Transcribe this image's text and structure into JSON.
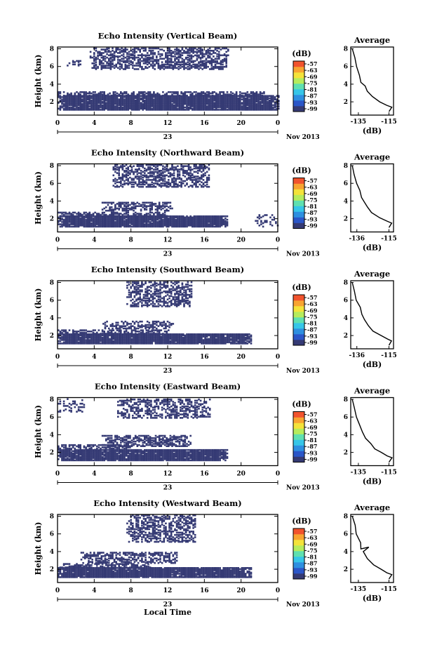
{
  "figure": {
    "shared_xlabel": "Local Time",
    "date_label": "Nov 2013",
    "day_label": "23",
    "avg_title": "Average",
    "avg_xlabel": "(dB)",
    "colorbar_label": "(dB)",
    "ylabel": "Height (km)"
  },
  "chart_data": [
    {
      "type": "heatmap",
      "title": "Echo Intensity (Vertical Beam)",
      "ylabel": "Height (km)",
      "x_ticks": [
        "0",
        "4",
        "8",
        "12",
        "16",
        "20",
        "0"
      ],
      "x_range": [
        0,
        24
      ],
      "y_ticks": [
        "2",
        "4",
        "6",
        "8"
      ],
      "y_range": [
        0.5,
        8.2
      ],
      "colorbar": {
        "label": "(dB)",
        "ticks": [
          "-57",
          "-63",
          "-69",
          "-75",
          "-81",
          "-87",
          "-93",
          "-99"
        ],
        "colors": [
          "#353a74",
          "#2b56c8",
          "#2e8fe0",
          "#36c6e8",
          "#5fe0b0",
          "#b6ec5c",
          "#f4e33a",
          "#f8a431",
          "#f1532d"
        ]
      },
      "mostly_value_db": -99,
      "bands": [
        {
          "t_start": 0,
          "t_end": 24,
          "h_bottom": 1.0,
          "h_top": 2.6,
          "density": 0.95
        },
        {
          "t_start": 0,
          "t_end": 22.5,
          "h_bottom": 2.6,
          "h_top": 3.1,
          "density": 0.55
        },
        {
          "t_start": 3.5,
          "t_end": 18.5,
          "h_bottom": 5.6,
          "h_top": 8.0,
          "density": 0.55
        },
        {
          "t_start": 1.0,
          "t_end": 3.0,
          "h_bottom": 6.0,
          "h_top": 6.6,
          "density": 0.3
        }
      ],
      "average": {
        "title": "Average",
        "xlabel": "(dB)",
        "x_ticks": [
          "-135",
          "-115"
        ],
        "x_range": [
          -140,
          -112
        ],
        "y_ticks": [
          "2",
          "4",
          "6",
          "8"
        ],
        "y_range": [
          0.5,
          8.2
        ],
        "profile": [
          [
            -139,
            8.0
          ],
          [
            -137.5,
            7.0
          ],
          [
            -136,
            6.0
          ],
          [
            -134,
            5.0
          ],
          [
            -133,
            4.2
          ],
          [
            -131,
            3.8
          ],
          [
            -129,
            3.2
          ],
          [
            -126,
            2.6
          ],
          [
            -121,
            2.0
          ],
          [
            -116,
            1.6
          ],
          [
            -113,
            1.4
          ],
          [
            -115,
            0.9
          ]
        ]
      }
    },
    {
      "type": "heatmap",
      "title": "Echo Intensity (Northward Beam)",
      "ylabel": "Height (km)",
      "x_ticks": [
        "0",
        "4",
        "8",
        "12",
        "16",
        "20",
        "0"
      ],
      "x_range": [
        0,
        24
      ],
      "y_ticks": [
        "2",
        "4",
        "6",
        "8"
      ],
      "y_range": [
        0.5,
        8.2
      ],
      "colorbar": {
        "label": "(dB)",
        "ticks": [
          "-57",
          "-63",
          "-69",
          "-75",
          "-81",
          "-87",
          "-93",
          "-99"
        ],
        "colors": [
          "#353a74",
          "#2b56c8",
          "#2e8fe0",
          "#36c6e8",
          "#5fe0b0",
          "#b6ec5c",
          "#f4e33a",
          "#f8a431",
          "#f1532d"
        ]
      },
      "mostly_value_db": -99,
      "bands": [
        {
          "t_start": 0,
          "t_end": 18.5,
          "h_bottom": 1.0,
          "h_top": 2.2,
          "density": 0.95
        },
        {
          "t_start": 0,
          "t_end": 12,
          "h_bottom": 2.2,
          "h_top": 2.6,
          "density": 0.6
        },
        {
          "t_start": 4.8,
          "t_end": 12.5,
          "h_bottom": 2.8,
          "h_top": 3.8,
          "density": 0.55
        },
        {
          "t_start": 6.0,
          "t_end": 16.5,
          "h_bottom": 5.5,
          "h_top": 8.0,
          "density": 0.5
        },
        {
          "t_start": 21.5,
          "t_end": 24,
          "h_bottom": 1.0,
          "h_top": 2.4,
          "density": 0.3
        }
      ],
      "average": {
        "title": "Average",
        "xlabel": "(dB)",
        "x_ticks": [
          "-136",
          "-115"
        ],
        "x_range": [
          -140,
          -112
        ],
        "y_ticks": [
          "2",
          "4",
          "6",
          "8"
        ],
        "y_range": [
          0.5,
          8.2
        ],
        "profile": [
          [
            -139,
            8.0
          ],
          [
            -137.5,
            7.0
          ],
          [
            -136,
            6.0
          ],
          [
            -134,
            5.2
          ],
          [
            -133,
            4.4
          ],
          [
            -131.5,
            3.9
          ],
          [
            -129,
            3.3
          ],
          [
            -126,
            2.7
          ],
          [
            -121,
            2.1
          ],
          [
            -116,
            1.7
          ],
          [
            -113,
            1.5
          ],
          [
            -115,
            1.0
          ]
        ]
      }
    },
    {
      "type": "heatmap",
      "title": "Echo Intensity (Southward Beam)",
      "ylabel": "Height (km)",
      "x_ticks": [
        "0",
        "4",
        "8",
        "12",
        "16",
        "20",
        "0"
      ],
      "x_range": [
        0,
        24
      ],
      "y_ticks": [
        "2",
        "4",
        "6",
        "8"
      ],
      "y_range": [
        0.5,
        8.2
      ],
      "colorbar": {
        "label": "(dB)",
        "ticks": [
          "-57",
          "-63",
          "-69",
          "-75",
          "-81",
          "-87",
          "-93",
          "-99"
        ],
        "colors": [
          "#353a74",
          "#2b56c8",
          "#2e8fe0",
          "#36c6e8",
          "#5fe0b0",
          "#b6ec5c",
          "#f4e33a",
          "#f8a431",
          "#f1532d"
        ]
      },
      "mostly_value_db": -99,
      "bands": [
        {
          "t_start": 0,
          "t_end": 21,
          "h_bottom": 1.0,
          "h_top": 2.1,
          "density": 0.95
        },
        {
          "t_start": 0,
          "t_end": 12,
          "h_bottom": 2.1,
          "h_top": 2.6,
          "density": 0.55
        },
        {
          "t_start": 4.5,
          "t_end": 12.5,
          "h_bottom": 2.7,
          "h_top": 3.6,
          "density": 0.5
        },
        {
          "t_start": 7.5,
          "t_end": 14.5,
          "h_bottom": 5.2,
          "h_top": 8.0,
          "density": 0.5
        }
      ],
      "average": {
        "title": "Average",
        "xlabel": "(dB)",
        "x_ticks": [
          "-136",
          "-115"
        ],
        "x_range": [
          -140,
          -112
        ],
        "y_ticks": [
          "2",
          "4",
          "6",
          "8"
        ],
        "y_range": [
          0.5,
          8.2
        ],
        "profile": [
          [
            -139,
            8.0
          ],
          [
            -137.5,
            7.0
          ],
          [
            -136,
            6.0
          ],
          [
            -134,
            5.2
          ],
          [
            -133,
            4.4
          ],
          [
            -131,
            3.8
          ],
          [
            -128,
            3.1
          ],
          [
            -125,
            2.5
          ],
          [
            -120,
            2.0
          ],
          [
            -116,
            1.6
          ],
          [
            -113,
            1.4
          ],
          [
            -115,
            0.9
          ]
        ]
      }
    },
    {
      "type": "heatmap",
      "title": "Echo Intensity (Eastward Beam)",
      "ylabel": "Height (km)",
      "x_ticks": [
        "0",
        "4",
        "8",
        "12",
        "16",
        "20",
        "0"
      ],
      "x_range": [
        0,
        24
      ],
      "y_ticks": [
        "2",
        "4",
        "6",
        "8"
      ],
      "y_range": [
        0.5,
        8.2
      ],
      "colorbar": {
        "label": "(dB)",
        "ticks": [
          "-57",
          "-63",
          "-69",
          "-75",
          "-81",
          "-87",
          "-93",
          "-99"
        ],
        "colors": [
          "#353a74",
          "#2b56c8",
          "#2e8fe0",
          "#36c6e8",
          "#5fe0b0",
          "#b6ec5c",
          "#f4e33a",
          "#f8a431",
          "#f1532d"
        ]
      },
      "mostly_value_db": -99,
      "bands": [
        {
          "t_start": 0,
          "t_end": 18.5,
          "h_bottom": 1.0,
          "h_top": 2.2,
          "density": 0.95
        },
        {
          "t_start": 0,
          "t_end": 8,
          "h_bottom": 2.2,
          "h_top": 2.8,
          "density": 0.55
        },
        {
          "t_start": 4.8,
          "t_end": 14.5,
          "h_bottom": 2.6,
          "h_top": 3.8,
          "density": 0.55
        },
        {
          "t_start": 6.5,
          "t_end": 16.5,
          "h_bottom": 5.8,
          "h_top": 8.0,
          "density": 0.45
        },
        {
          "t_start": 0,
          "t_end": 3,
          "h_bottom": 6.5,
          "h_top": 8.0,
          "density": 0.25
        }
      ],
      "average": {
        "title": "Average",
        "xlabel": "(dB)",
        "x_ticks": [
          "-135",
          "-115"
        ],
        "x_range": [
          -140,
          -112
        ],
        "y_ticks": [
          "2",
          "4",
          "6",
          "8"
        ],
        "y_range": [
          0.5,
          8.2
        ],
        "profile": [
          [
            -139,
            8.0
          ],
          [
            -137.5,
            7.0
          ],
          [
            -136,
            6.0
          ],
          [
            -134,
            5.2
          ],
          [
            -132.5,
            4.3
          ],
          [
            -130,
            3.6
          ],
          [
            -127,
            3.0
          ],
          [
            -124,
            2.4
          ],
          [
            -120,
            2.0
          ],
          [
            -116,
            1.6
          ],
          [
            -113,
            1.4
          ],
          [
            -115,
            0.9
          ]
        ]
      }
    },
    {
      "type": "heatmap",
      "title": "Echo Intensity (Westward Beam)",
      "ylabel": "Height (km)",
      "x_ticks": [
        "0",
        "4",
        "8",
        "12",
        "16",
        "20",
        "0"
      ],
      "x_range": [
        0,
        24
      ],
      "y_ticks": [
        "2",
        "4",
        "6",
        "8"
      ],
      "y_range": [
        0.5,
        8.2
      ],
      "colorbar": {
        "label": "(dB)",
        "ticks": [
          "-57",
          "-63",
          "-69",
          "-75",
          "-81",
          "-87",
          "-93",
          "-99"
        ],
        "colors": [
          "#353a74",
          "#2b56c8",
          "#2e8fe0",
          "#36c6e8",
          "#5fe0b0",
          "#b6ec5c",
          "#f4e33a",
          "#f8a431",
          "#f1532d"
        ]
      },
      "mostly_value_db": -99,
      "bands": [
        {
          "t_start": 0,
          "t_end": 21,
          "h_bottom": 1.0,
          "h_top": 2.1,
          "density": 0.95
        },
        {
          "t_start": 0,
          "t_end": 10,
          "h_bottom": 2.1,
          "h_top": 2.6,
          "density": 0.55
        },
        {
          "t_start": 2.5,
          "t_end": 13,
          "h_bottom": 2.6,
          "h_top": 3.8,
          "density": 0.55
        },
        {
          "t_start": 7.5,
          "t_end": 15,
          "h_bottom": 5.0,
          "h_top": 8.0,
          "density": 0.5
        }
      ],
      "average": {
        "title": "Average",
        "xlabel": "(dB)",
        "x_ticks": [
          "-135",
          "-115"
        ],
        "x_range": [
          -140,
          -112
        ],
        "y_ticks": [
          "2",
          "4",
          "6",
          "8"
        ],
        "y_range": [
          0.5,
          8.2
        ],
        "profile": [
          [
            -139,
            8.0
          ],
          [
            -137.5,
            7.0
          ],
          [
            -136,
            6.0
          ],
          [
            -134,
            5.0
          ],
          [
            -133,
            4.3
          ],
          [
            -128,
            4.5
          ],
          [
            -132,
            4.0
          ],
          [
            -129,
            3.2
          ],
          [
            -125,
            2.5
          ],
          [
            -120,
            2.0
          ],
          [
            -116,
            1.6
          ],
          [
            -113,
            1.4
          ],
          [
            -115,
            0.9
          ]
        ]
      }
    }
  ]
}
